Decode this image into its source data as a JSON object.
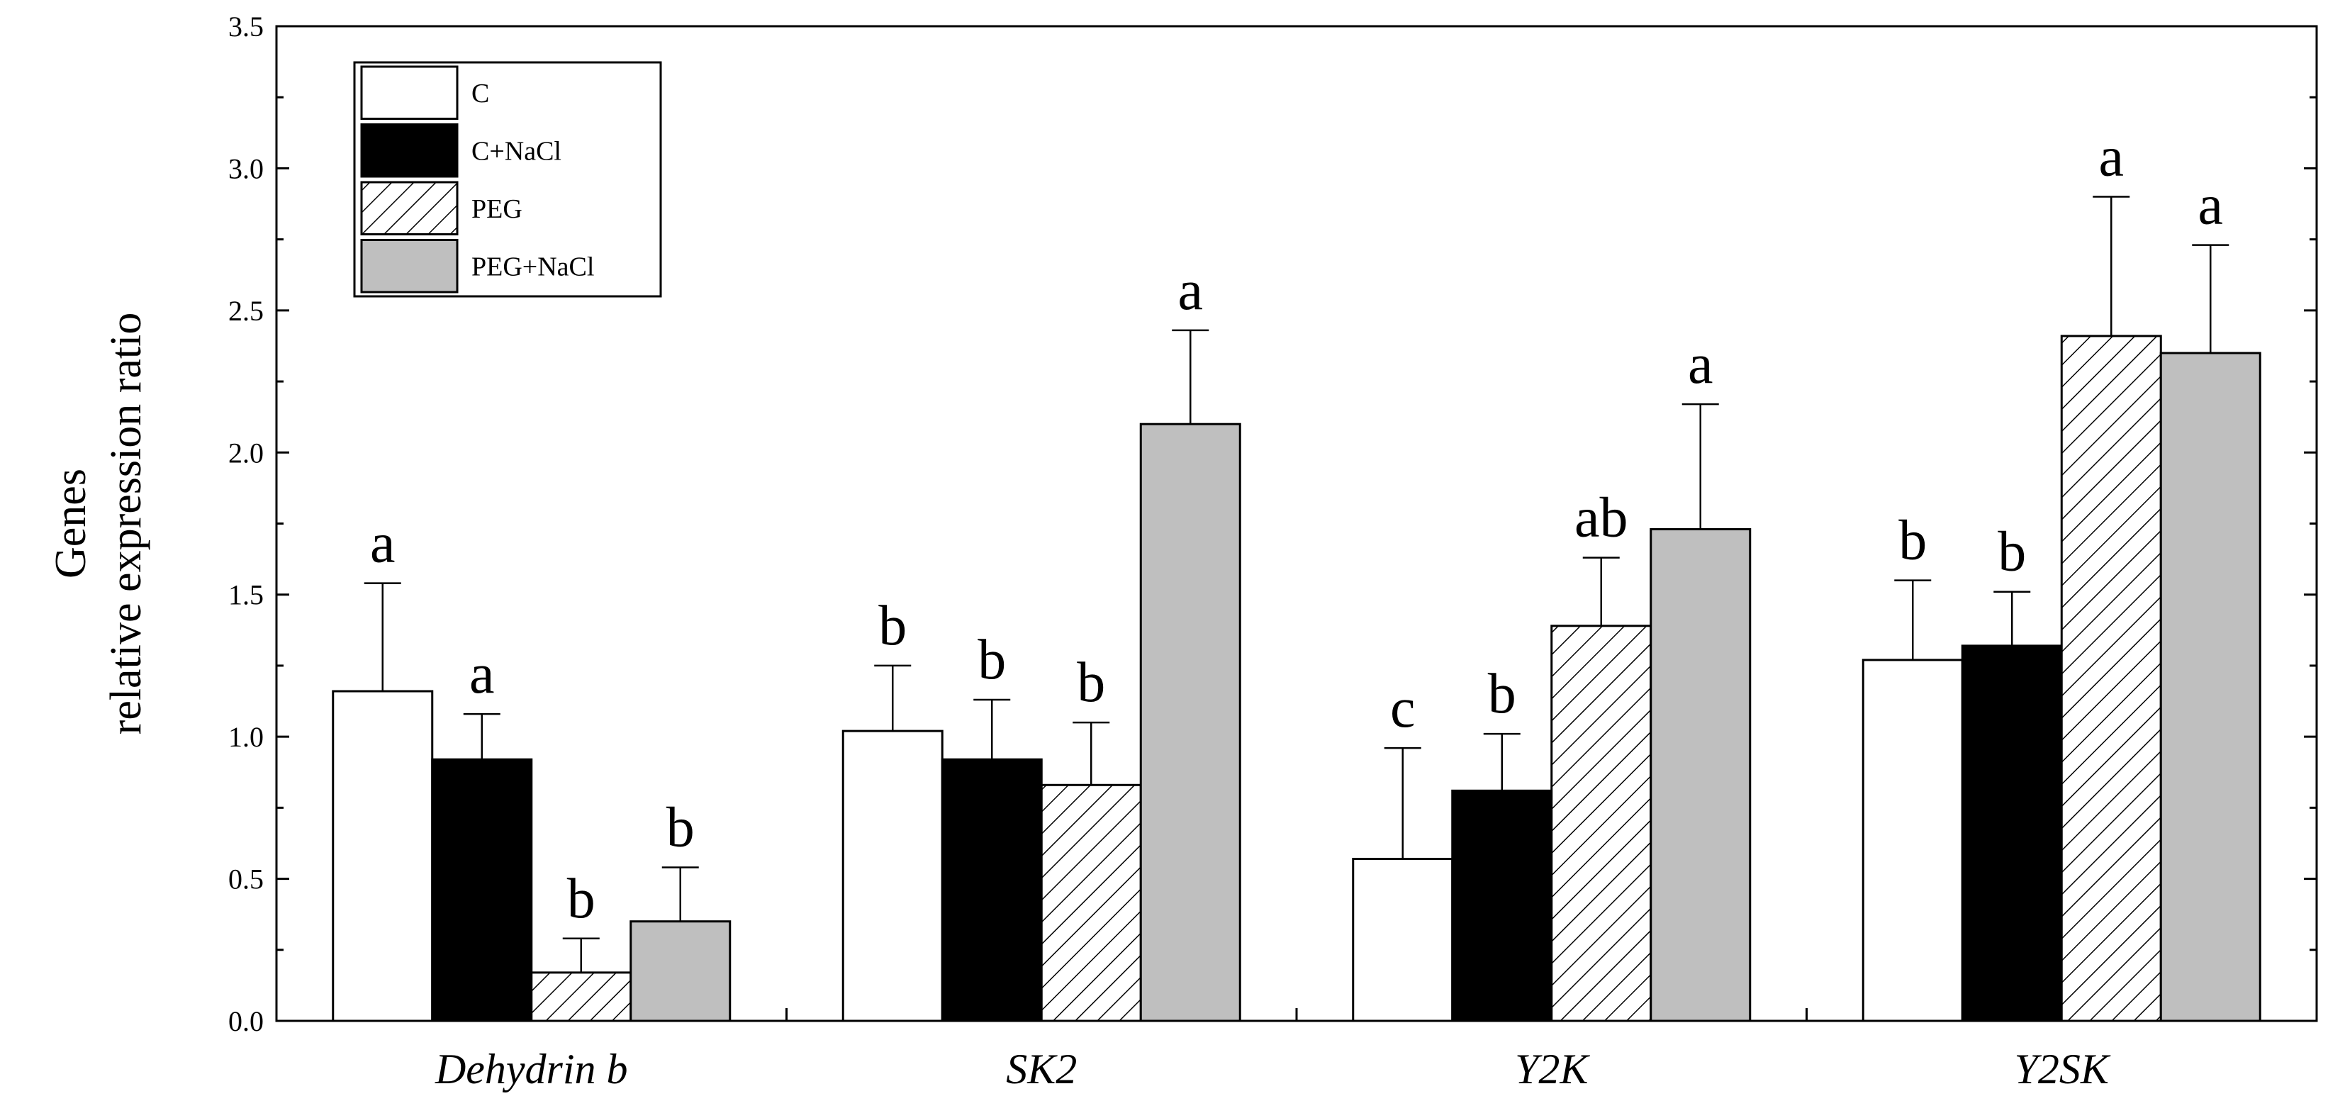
{
  "chart_data": {
    "type": "bar",
    "ylabel_lines": [
      "Genes",
      "relative expression ratio"
    ],
    "xlabel": "",
    "ylim": [
      0,
      3.5
    ],
    "yticks": [
      "0.0",
      "0.5",
      "1.0",
      "1.5",
      "2.0",
      "2.5",
      "3.0",
      "3.5"
    ],
    "categories": [
      "Dehydrin b",
      "SK2",
      "Y2K",
      "Y2SK"
    ],
    "legend_position": "top-left",
    "series": [
      {
        "name": "C",
        "fill": "white",
        "values": [
          1.16,
          1.02,
          0.57,
          1.27
        ],
        "errors": [
          0.38,
          0.23,
          0.39,
          0.28
        ],
        "letters": [
          "a",
          "b",
          "c",
          "b"
        ]
      },
      {
        "name": "C+NaCl",
        "fill": "black",
        "values": [
          0.92,
          0.92,
          0.81,
          1.32
        ],
        "errors": [
          0.16,
          0.21,
          0.2,
          0.19
        ],
        "letters": [
          "a",
          "b",
          "b",
          "b"
        ]
      },
      {
        "name": "PEG",
        "fill": "hatch",
        "values": [
          0.17,
          0.83,
          1.39,
          2.41
        ],
        "errors": [
          0.12,
          0.22,
          0.24,
          0.49
        ],
        "letters": [
          "b",
          "b",
          "ab",
          "a"
        ]
      },
      {
        "name": "PEG+NaCl",
        "fill": "gray",
        "values": [
          0.35,
          2.1,
          1.73,
          2.35
        ],
        "errors": [
          0.19,
          0.33,
          0.44,
          0.38
        ],
        "letters": [
          "b",
          "a",
          "a",
          "a"
        ]
      }
    ],
    "colors": {
      "white": "#ffffff",
      "black": "#000000",
      "gray": "#bfbfbf",
      "hatch_line": "#000000"
    }
  }
}
